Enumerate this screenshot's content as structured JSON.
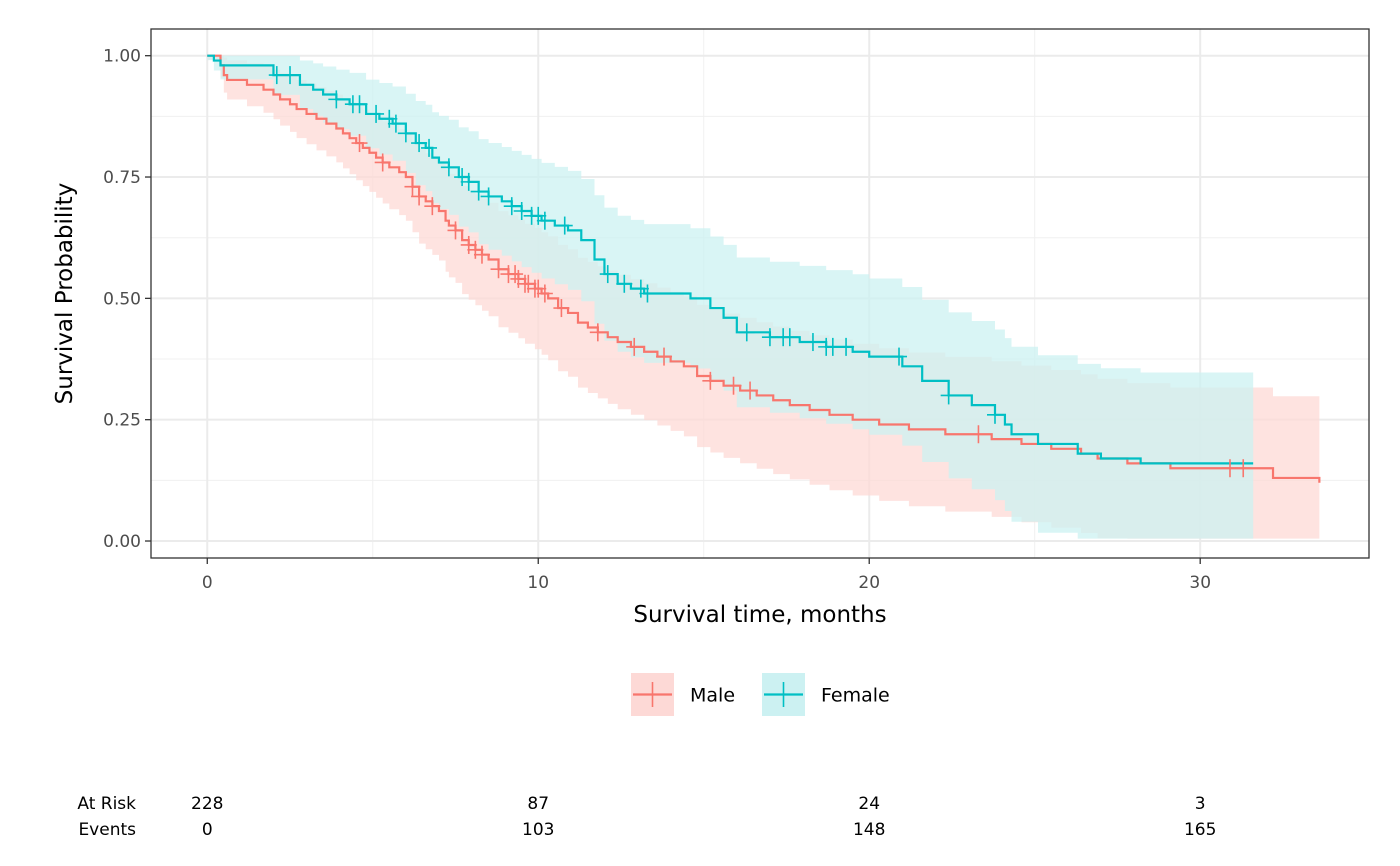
{
  "chart_data": {
    "type": "line",
    "subtype": "kaplan-meier",
    "title": "",
    "xlabel": "Survival time, months",
    "ylabel": "Survival Probability",
    "xlim": [
      -1.7,
      35.1
    ],
    "ylim": [
      -0.035,
      1.055
    ],
    "x_ticks": [
      0,
      10,
      20,
      30
    ],
    "y_ticks": [
      0,
      0.25,
      0.5,
      0.75,
      1
    ],
    "y_tick_labels": [
      "0.00",
      "0.25",
      "0.50",
      "0.75",
      "1.00"
    ],
    "grid": true,
    "legend_position": "bottom",
    "series": [
      {
        "name": "Male",
        "color": "#F8766D",
        "band_color": "#FDD9D6",
        "steps": [
          [
            0,
            1
          ],
          [
            0.4,
            0.98
          ],
          [
            0.5,
            0.96
          ],
          [
            0.6,
            0.95
          ],
          [
            1,
            0.95
          ],
          [
            1.2,
            0.94
          ],
          [
            1.7,
            0.93
          ],
          [
            2,
            0.92
          ],
          [
            2.2,
            0.91
          ],
          [
            2.5,
            0.9
          ],
          [
            2.7,
            0.89
          ],
          [
            3,
            0.88
          ],
          [
            3.3,
            0.87
          ],
          [
            3.6,
            0.86
          ],
          [
            3.9,
            0.85
          ],
          [
            4.1,
            0.84
          ],
          [
            4.3,
            0.83
          ],
          [
            4.5,
            0.82
          ],
          [
            4.7,
            0.81
          ],
          [
            4.9,
            0.8
          ],
          [
            5.1,
            0.79
          ],
          [
            5.3,
            0.78
          ],
          [
            5.5,
            0.77
          ],
          [
            5.8,
            0.76
          ],
          [
            6,
            0.75
          ],
          [
            6.2,
            0.73
          ],
          [
            6.4,
            0.71
          ],
          [
            6.6,
            0.7
          ],
          [
            6.8,
            0.69
          ],
          [
            7,
            0.68
          ],
          [
            7.2,
            0.66
          ],
          [
            7.3,
            0.65
          ],
          [
            7.5,
            0.64
          ],
          [
            7.7,
            0.62
          ],
          [
            7.9,
            0.61
          ],
          [
            8.1,
            0.6
          ],
          [
            8.3,
            0.59
          ],
          [
            8.5,
            0.58
          ],
          [
            8.8,
            0.56
          ],
          [
            9.1,
            0.55
          ],
          [
            9.4,
            0.54
          ],
          [
            9.6,
            0.53
          ],
          [
            9.9,
            0.52
          ],
          [
            10.1,
            0.51
          ],
          [
            10.3,
            0.5
          ],
          [
            10.6,
            0.48
          ],
          [
            10.9,
            0.47
          ],
          [
            11.2,
            0.45
          ],
          [
            11.5,
            0.44
          ],
          [
            11.8,
            0.43
          ],
          [
            12.1,
            0.42
          ],
          [
            12.4,
            0.41
          ],
          [
            12.8,
            0.4
          ],
          [
            13.2,
            0.39
          ],
          [
            13.6,
            0.38
          ],
          [
            14,
            0.37
          ],
          [
            14.4,
            0.36
          ],
          [
            14.8,
            0.34
          ],
          [
            15.2,
            0.33
          ],
          [
            15.6,
            0.32
          ],
          [
            16.1,
            0.31
          ],
          [
            16.6,
            0.3
          ],
          [
            17.1,
            0.29
          ],
          [
            17.6,
            0.28
          ],
          [
            18.2,
            0.27
          ],
          [
            18.8,
            0.26
          ],
          [
            19.5,
            0.25
          ],
          [
            20.3,
            0.24
          ],
          [
            21.2,
            0.23
          ],
          [
            22.3,
            0.22
          ],
          [
            23.7,
            0.21
          ],
          [
            24.6,
            0.2
          ],
          [
            25.5,
            0.19
          ],
          [
            26.4,
            0.18
          ],
          [
            26.9,
            0.17
          ],
          [
            27.8,
            0.16
          ],
          [
            29.1,
            0.15
          ],
          [
            32.2,
            0.13
          ],
          [
            33.6,
            0.12
          ]
        ],
        "censor_x": [
          4.6,
          5.3,
          6.2,
          6.4,
          6.8,
          7.5,
          7.9,
          8.1,
          8.3,
          8.8,
          9.1,
          9.3,
          9.4,
          9.6,
          9.7,
          9.9,
          10,
          10.2,
          10.7,
          11.8,
          12.9,
          13.8,
          15.2,
          15.9,
          16.4,
          23.3,
          30.9,
          31.3
        ]
      },
      {
        "name": "Female",
        "color": "#00BFC4",
        "band_color": "#CCF1F2",
        "steps": [
          [
            0,
            1
          ],
          [
            0.2,
            0.99
          ],
          [
            0.4,
            0.98
          ],
          [
            2,
            0.96
          ],
          [
            2.8,
            0.94
          ],
          [
            3.2,
            0.93
          ],
          [
            3.5,
            0.92
          ],
          [
            3.9,
            0.91
          ],
          [
            4.3,
            0.9
          ],
          [
            4.8,
            0.88
          ],
          [
            5.2,
            0.87
          ],
          [
            5.6,
            0.86
          ],
          [
            6,
            0.84
          ],
          [
            6.3,
            0.82
          ],
          [
            6.6,
            0.81
          ],
          [
            6.8,
            0.79
          ],
          [
            7,
            0.78
          ],
          [
            7.3,
            0.77
          ],
          [
            7.6,
            0.75
          ],
          [
            7.9,
            0.74
          ],
          [
            8.2,
            0.72
          ],
          [
            8.5,
            0.71
          ],
          [
            8.9,
            0.7
          ],
          [
            9.2,
            0.69
          ],
          [
            9.5,
            0.68
          ],
          [
            9.8,
            0.67
          ],
          [
            10.1,
            0.66
          ],
          [
            10.5,
            0.65
          ],
          [
            10.9,
            0.64
          ],
          [
            11.3,
            0.62
          ],
          [
            11.7,
            0.58
          ],
          [
            12,
            0.55
          ],
          [
            12.4,
            0.53
          ],
          [
            12.8,
            0.52
          ],
          [
            13.2,
            0.51
          ],
          [
            14.6,
            0.5
          ],
          [
            15.2,
            0.48
          ],
          [
            15.6,
            0.46
          ],
          [
            16,
            0.43
          ],
          [
            17,
            0.42
          ],
          [
            17.9,
            0.41
          ],
          [
            18.7,
            0.4
          ],
          [
            19.5,
            0.39
          ],
          [
            20,
            0.38
          ],
          [
            21,
            0.36
          ],
          [
            21.6,
            0.33
          ],
          [
            22.4,
            0.3
          ],
          [
            23.1,
            0.28
          ],
          [
            23.8,
            0.26
          ],
          [
            24.1,
            0.24
          ],
          [
            24.3,
            0.22
          ],
          [
            25.1,
            0.2
          ],
          [
            26.3,
            0.18
          ],
          [
            27,
            0.17
          ],
          [
            28.2,
            0.16
          ],
          [
            31.6,
            0.16
          ]
        ],
        "censor_x": [
          2.1,
          2.5,
          3.9,
          4.4,
          4.6,
          5.1,
          5.5,
          5.7,
          6,
          6.4,
          6.7,
          7.3,
          7.7,
          7.9,
          8.2,
          8.5,
          9.2,
          9.5,
          9.8,
          10,
          10.2,
          10.8,
          12.1,
          12.6,
          13.1,
          13.3,
          16.3,
          17,
          17.4,
          17.6,
          18.3,
          18.7,
          18.9,
          19.3,
          20.9,
          22.4,
          23.8
        ]
      }
    ]
  },
  "risk_table": {
    "row_labels": [
      "At Risk",
      "Events"
    ],
    "times": [
      0,
      10,
      20,
      30
    ],
    "at_risk": [
      "228",
      "87",
      "24",
      "3"
    ],
    "events": [
      "0",
      "103",
      "148",
      "165"
    ]
  }
}
